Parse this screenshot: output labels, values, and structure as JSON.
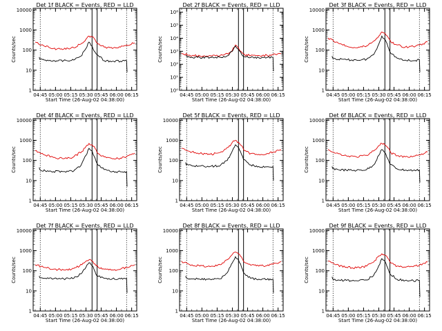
{
  "chart_data": [
    {
      "type": "line",
      "title": "Det 1f BLACK = Events, RED = LLD",
      "xlabel": "Start Time (26-Aug-02 04:38:00)",
      "ylabel": "Counts/sec",
      "yscale": "log",
      "ylim": [
        1,
        12000
      ],
      "ytick_labels": [
        "1",
        "10",
        "100",
        "1000",
        "10000"
      ],
      "xlim_min": [
        0,
        102
      ],
      "xtick_labels": [
        "04:45",
        "05:00",
        "05:15",
        "05:30",
        "05:45",
        "06:00",
        "06:15"
      ],
      "xtick_min": [
        7,
        22,
        37,
        52,
        67,
        82,
        97
      ],
      "dotted_markers_min": [
        7,
        92
      ],
      "solid_markers_min": [
        58,
        63
      ],
      "series": [
        {
          "color": "#e00000",
          "x": [
            2,
            10,
            20,
            30,
            40,
            48,
            52,
            55,
            58,
            61,
            64,
            70,
            78,
            86,
            92,
            100
          ],
          "y": [
            250,
            170,
            120,
            110,
            130,
            220,
            350,
            500,
            450,
            330,
            200,
            140,
            120,
            140,
            180,
            230
          ]
        },
        {
          "color": "#000000",
          "x": [
            6,
            6.5,
            12,
            20,
            30,
            40,
            47,
            52,
            55,
            58,
            61,
            63,
            70,
            78,
            86,
            92,
            92.5
          ],
          "y": [
            45,
            35,
            32,
            30,
            30,
            32,
            50,
            120,
            250,
            160,
            80,
            60,
            30,
            28,
            28,
            30,
            8
          ]
        }
      ]
    },
    {
      "type": "line",
      "title": "Det 2f BLACK = Events, RED = LLD",
      "xlabel": "Start Time (26-Aug-02 04:38:00)",
      "ylabel": "Counts/sec",
      "yscale": "log",
      "ylim": [
        1,
        2000000
      ],
      "ytick_labels": [
        "10⁰",
        "10¹",
        "10²",
        "10³",
        "10⁴",
        "10⁵",
        "10⁶"
      ],
      "xlim_min": [
        0,
        102
      ],
      "xtick_labels": [
        "04:45",
        "05:00",
        "05:15",
        "05:30",
        "05:45",
        "06:00",
        "06:15"
      ],
      "xtick_min": [
        7,
        22,
        37,
        52,
        67,
        82,
        97
      ],
      "dotted_markers_min": [
        7,
        92
      ],
      "solid_markers_min": [
        58,
        63
      ],
      "series": [
        {
          "color": "#e00000",
          "x": [
            2,
            10,
            20,
            30,
            40,
            48,
            52,
            55,
            58,
            61,
            64,
            70,
            78,
            86,
            92,
            100
          ],
          "y": [
            700,
            500,
            450,
            470,
            480,
            600,
            1200,
            3000,
            1800,
            900,
            550,
            480,
            470,
            500,
            550,
            650
          ]
        },
        {
          "color": "#000000",
          "x": [
            6,
            12,
            20,
            30,
            40,
            47,
            52,
            55,
            58,
            61,
            63,
            70,
            78,
            86,
            92,
            92.5
          ],
          "y": [
            450,
            350,
            330,
            340,
            350,
            450,
            1000,
            2500,
            1400,
            600,
            400,
            330,
            320,
            330,
            340,
            30
          ]
        }
      ]
    },
    {
      "type": "line",
      "title": "Det 3f BLACK = Events, RED = LLD",
      "xlabel": "Start Time (26-Aug-02 04:38:00)",
      "ylabel": "Counts/sec",
      "yscale": "log",
      "ylim": [
        1,
        12000
      ],
      "ytick_labels": [
        "1",
        "10",
        "100",
        "1000",
        "10000"
      ],
      "xlim_min": [
        0,
        102
      ],
      "xtick_labels": [
        "04:45",
        "05:00",
        "05:15",
        "05:30",
        "05:45",
        "06:00",
        "06:15"
      ],
      "xtick_min": [
        7,
        22,
        37,
        52,
        67,
        82,
        97
      ],
      "dotted_markers_min": [
        7,
        92
      ],
      "solid_markers_min": [
        58,
        63
      ],
      "series": [
        {
          "color": "#e00000",
          "x": [
            2,
            10,
            20,
            30,
            40,
            48,
            52,
            55,
            58,
            61,
            64,
            70,
            78,
            86,
            92,
            100
          ],
          "y": [
            400,
            250,
            160,
            130,
            160,
            300,
            500,
            800,
            700,
            450,
            250,
            180,
            140,
            150,
            180,
            250
          ]
        },
        {
          "color": "#000000",
          "x": [
            6,
            6.5,
            12,
            20,
            30,
            40,
            47,
            52,
            55,
            58,
            61,
            63,
            70,
            78,
            86,
            92,
            92.5
          ],
          "y": [
            50,
            40,
            35,
            33,
            32,
            35,
            60,
            200,
            500,
            350,
            150,
            80,
            40,
            32,
            30,
            32,
            8
          ]
        }
      ]
    },
    {
      "type": "line",
      "title": "Det 4f BLACK = Events, RED = LLD",
      "xlabel": "Start Time (26-Aug-02 04:38:00)",
      "ylabel": "Counts/sec",
      "yscale": "log",
      "ylim": [
        1,
        12000
      ],
      "ytick_labels": [
        "1",
        "10",
        "100",
        "1000",
        "10000"
      ],
      "xlim_min": [
        0,
        102
      ],
      "xtick_labels": [
        "04:45",
        "05:00",
        "05:15",
        "05:30",
        "05:45",
        "06:00",
        "06:15"
      ],
      "xtick_min": [
        7,
        22,
        37,
        52,
        67,
        82,
        97
      ],
      "dotted_markers_min": [
        7,
        92
      ],
      "solid_markers_min": [
        58,
        63
      ],
      "series": [
        {
          "color": "#e00000",
          "x": [
            2,
            10,
            20,
            30,
            40,
            48,
            52,
            55,
            58,
            61,
            64,
            70,
            78,
            86,
            92,
            100
          ],
          "y": [
            300,
            200,
            140,
            120,
            150,
            280,
            500,
            700,
            600,
            400,
            220,
            150,
            120,
            130,
            160,
            230
          ]
        },
        {
          "color": "#000000",
          "x": [
            6,
            6.5,
            12,
            20,
            30,
            40,
            47,
            52,
            55,
            58,
            61,
            63,
            70,
            78,
            86,
            92,
            92.5
          ],
          "y": [
            45,
            35,
            30,
            28,
            28,
            30,
            55,
            180,
            400,
            300,
            130,
            70,
            35,
            28,
            27,
            28,
            5
          ]
        }
      ]
    },
    {
      "type": "line",
      "title": "Det 5f BLACK = Events, RED = LLD",
      "xlabel": "Start Time (26-Aug-02 04:38:00)",
      "ylabel": "Counts/sec",
      "yscale": "log",
      "ylim": [
        1,
        12000
      ],
      "ytick_labels": [
        "1",
        "10",
        "100",
        "1000",
        "10000"
      ],
      "xlim_min": [
        0,
        102
      ],
      "xtick_labels": [
        "04:45",
        "05:00",
        "05:15",
        "05:30",
        "05:45",
        "06:00",
        "06:15"
      ],
      "xtick_min": [
        7,
        22,
        37,
        52,
        67,
        82,
        97
      ],
      "dotted_markers_min": [
        7,
        92
      ],
      "solid_markers_min": [
        58,
        63
      ],
      "series": [
        {
          "color": "#e00000",
          "x": [
            2,
            10,
            20,
            30,
            40,
            48,
            52,
            55,
            58,
            61,
            64,
            70,
            78,
            86,
            92,
            100
          ],
          "y": [
            400,
            280,
            220,
            200,
            250,
            450,
            800,
            1000,
            800,
            550,
            300,
            220,
            200,
            220,
            260,
            330
          ]
        },
        {
          "color": "#000000",
          "x": [
            6,
            6.5,
            12,
            20,
            30,
            40,
            47,
            52,
            55,
            58,
            61,
            63,
            70,
            78,
            86,
            92,
            92.5
          ],
          "y": [
            80,
            60,
            55,
            52,
            50,
            55,
            100,
            300,
            600,
            450,
            200,
            110,
            60,
            50,
            48,
            50,
            10
          ]
        }
      ]
    },
    {
      "type": "line",
      "title": "Det 6f BLACK = Events, RED = LLD",
      "xlabel": "Start Time (26-Aug-02 04:38:00)",
      "ylabel": "Counts/sec",
      "yscale": "log",
      "ylim": [
        1,
        12000
      ],
      "ytick_labels": [
        "1",
        "10",
        "100",
        "1000",
        "10000"
      ],
      "xlim_min": [
        0,
        102
      ],
      "xtick_labels": [
        "04:45",
        "05:00",
        "05:15",
        "05:30",
        "05:45",
        "06:00",
        "06:15"
      ],
      "xtick_min": [
        7,
        22,
        37,
        52,
        67,
        82,
        97
      ],
      "dotted_markers_min": [
        7,
        92
      ],
      "solid_markers_min": [
        58,
        63
      ],
      "series": [
        {
          "color": "#e00000",
          "x": [
            2,
            10,
            20,
            30,
            40,
            48,
            52,
            55,
            58,
            61,
            64,
            70,
            78,
            86,
            92,
            100
          ],
          "y": [
            350,
            230,
            170,
            150,
            180,
            330,
            550,
            700,
            600,
            420,
            240,
            170,
            150,
            160,
            190,
            260
          ]
        },
        {
          "color": "#000000",
          "x": [
            6,
            6.5,
            12,
            20,
            30,
            40,
            47,
            52,
            55,
            58,
            61,
            63,
            70,
            78,
            86,
            92,
            92.5
          ],
          "y": [
            50,
            40,
            35,
            33,
            32,
            35,
            60,
            180,
            350,
            250,
            120,
            65,
            38,
            33,
            32,
            33,
            8
          ]
        }
      ]
    },
    {
      "type": "line",
      "title": "Det 7f BLACK = Events, RED = LLD",
      "xlabel": "Start Time (26-Aug-02 04:38:00)",
      "ylabel": "Counts/sec",
      "yscale": "log",
      "ylim": [
        1,
        12000
      ],
      "ytick_labels": [
        "1",
        "10",
        "100",
        "1000",
        "10000"
      ],
      "xlim_min": [
        0,
        102
      ],
      "xtick_labels": [
        "04:45",
        "05:00",
        "05:15",
        "05:30",
        "05:45",
        "06:00",
        "06:15"
      ],
      "xtick_min": [
        7,
        22,
        37,
        52,
        67,
        82,
        97
      ],
      "dotted_markers_min": [
        7,
        92
      ],
      "solid_markers_min": [
        58,
        63
      ],
      "series": [
        {
          "color": "#e00000",
          "x": [
            2,
            10,
            20,
            30,
            40,
            48,
            52,
            55,
            58,
            61,
            64,
            70,
            78,
            86,
            92,
            100
          ],
          "y": [
            200,
            150,
            120,
            110,
            130,
            200,
            300,
            350,
            300,
            220,
            150,
            120,
            110,
            120,
            150,
            200
          ]
        },
        {
          "color": "#000000",
          "x": [
            6,
            6.5,
            12,
            20,
            30,
            40,
            47,
            52,
            55,
            58,
            61,
            63,
            70,
            78,
            86,
            92,
            92.5
          ],
          "y": [
            55,
            45,
            42,
            40,
            40,
            42,
            70,
            150,
            250,
            180,
            90,
            55,
            42,
            40,
            40,
            42,
            8
          ]
        }
      ]
    },
    {
      "type": "line",
      "title": "Det 8f BLACK = Events, RED = LLD",
      "xlabel": "Start Time (26-Aug-02 04:38:00)",
      "ylabel": "Counts/sec",
      "yscale": "log",
      "ylim": [
        1,
        12000
      ],
      "ytick_labels": [
        "1",
        "10",
        "100",
        "1000",
        "10000"
      ],
      "xlim_min": [
        0,
        102
      ],
      "xtick_labels": [
        "04:45",
        "05:00",
        "05:15",
        "05:30",
        "05:45",
        "06:00",
        "06:15"
      ],
      "xtick_min": [
        7,
        22,
        37,
        52,
        67,
        82,
        97
      ],
      "dotted_markers_min": [
        7,
        92
      ],
      "solid_markers_min": [
        58,
        63
      ],
      "series": [
        {
          "color": "#e00000",
          "x": [
            2,
            10,
            20,
            30,
            40,
            48,
            52,
            55,
            58,
            61,
            64,
            70,
            78,
            86,
            92,
            100
          ],
          "y": [
            300,
            200,
            170,
            160,
            200,
            380,
            650,
            850,
            700,
            480,
            260,
            190,
            170,
            180,
            210,
            280
          ]
        },
        {
          "color": "#000000",
          "x": [
            6,
            6.5,
            12,
            20,
            30,
            40,
            47,
            52,
            55,
            58,
            61,
            63,
            70,
            78,
            86,
            92,
            92.5
          ],
          "y": [
            55,
            45,
            40,
            38,
            38,
            40,
            80,
            250,
            500,
            350,
            150,
            80,
            42,
            38,
            37,
            38,
            8
          ]
        }
      ]
    },
    {
      "type": "line",
      "title": "Det 9f BLACK = Events, RED = LLD",
      "xlabel": "Start Time (26-Aug-02 04:38:00)",
      "ylabel": "Counts/sec",
      "yscale": "log",
      "ylim": [
        1,
        12000
      ],
      "ytick_labels": [
        "1",
        "10",
        "100",
        "1000",
        "10000"
      ],
      "xlim_min": [
        0,
        102
      ],
      "xtick_labels": [
        "04:45",
        "05:00",
        "05:15",
        "05:30",
        "05:45",
        "06:00",
        "06:15"
      ],
      "xtick_min": [
        7,
        22,
        37,
        52,
        67,
        82,
        97
      ],
      "dotted_markers_min": [
        7,
        92
      ],
      "solid_markers_min": [
        58,
        63
      ],
      "series": [
        {
          "color": "#e00000",
          "x": [
            2,
            10,
            20,
            30,
            40,
            48,
            52,
            55,
            58,
            61,
            64,
            70,
            78,
            86,
            92,
            100
          ],
          "y": [
            300,
            200,
            150,
            140,
            170,
            320,
            550,
            700,
            600,
            420,
            240,
            170,
            150,
            160,
            190,
            270
          ]
        },
        {
          "color": "#000000",
          "x": [
            6,
            6.5,
            12,
            20,
            30,
            40,
            47,
            52,
            55,
            58,
            61,
            63,
            70,
            78,
            86,
            92,
            92.5
          ],
          "y": [
            50,
            40,
            35,
            33,
            32,
            35,
            60,
            180,
            400,
            300,
            130,
            70,
            38,
            33,
            32,
            33,
            5
          ]
        }
      ]
    }
  ]
}
